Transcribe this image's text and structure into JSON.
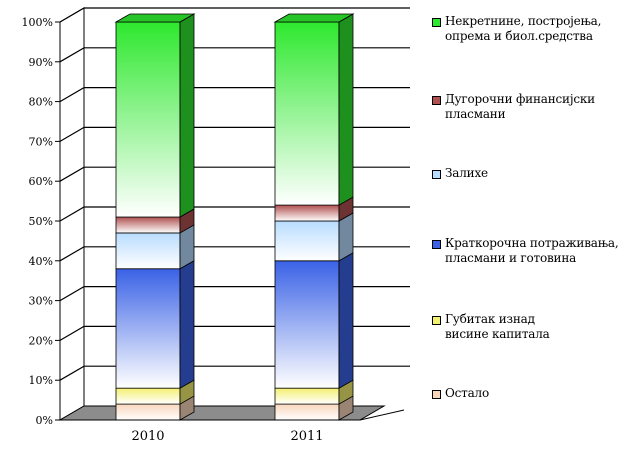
{
  "chart_data": {
    "type": "bar",
    "stacked": true,
    "three_d": true,
    "categories": [
      "2010",
      "2011"
    ],
    "ylim": [
      0,
      100
    ],
    "yticks": [
      "0%",
      "10%",
      "20%",
      "30%",
      "40%",
      "50%",
      "60%",
      "70%",
      "80%",
      "90%",
      "100%"
    ],
    "grid": true,
    "legend_position": "right",
    "series": [
      {
        "name": "Остало",
        "values": [
          4,
          4
        ],
        "color": "#f8d6bc"
      },
      {
        "name": "Губитак изнад\nвисине капитала",
        "values": [
          4,
          4
        ],
        "color": "#f4f070"
      },
      {
        "name": "Краткорочна потраживања,\nпласмани и готовина",
        "values": [
          30,
          32
        ],
        "color": "#3a62e6"
      },
      {
        "name": "Залихе",
        "values": [
          9,
          10
        ],
        "color": "#b8dcff"
      },
      {
        "name": "Дугорочни финансијски\nпласмани",
        "values": [
          4,
          4
        ],
        "color": "#b05050"
      },
      {
        "name": "Некретнине, постројења,\nопрема и биол.средства",
        "values": [
          49,
          46
        ],
        "color": "#2ee82e"
      }
    ]
  }
}
